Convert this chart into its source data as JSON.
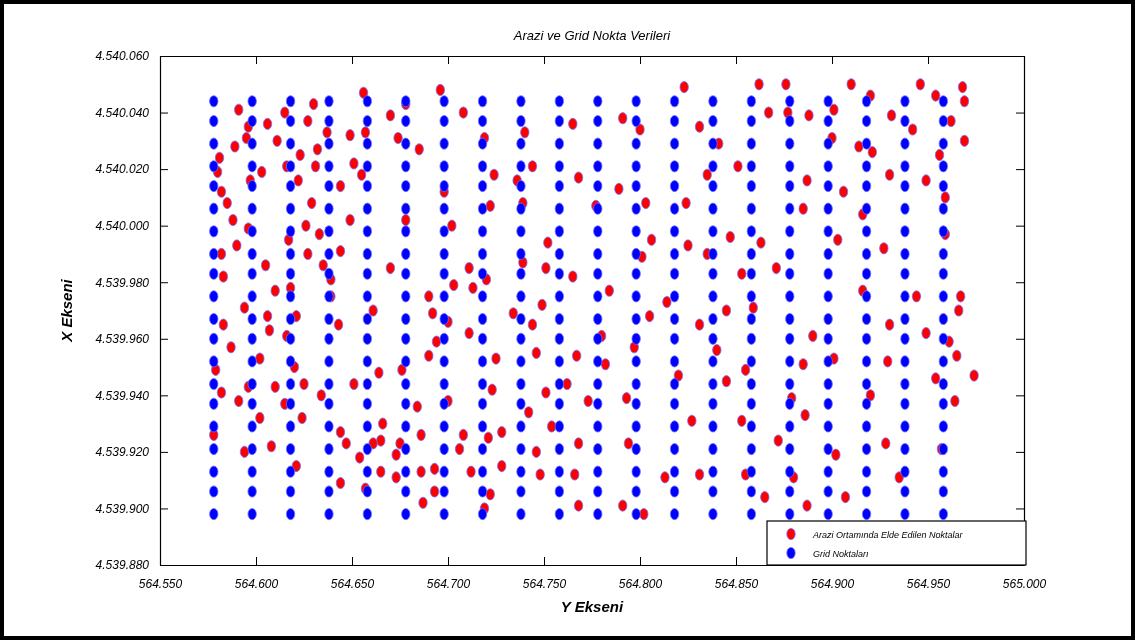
{
  "chart_data": {
    "type": "scatter",
    "title": "Arazi ve Grid Nokta Verileri",
    "xlabel": "Y Ekseni",
    "ylabel": "X Ekseni",
    "xlim": [
      564550,
      565000
    ],
    "xticks": [
      {
        "value": 564550,
        "label": "564.550"
      },
      {
        "value": 564600,
        "label": "564.600"
      },
      {
        "value": 564650,
        "label": "564.650"
      },
      {
        "value": 564700,
        "label": "564.700"
      },
      {
        "value": 564750,
        "label": "564.750"
      },
      {
        "value": 564800,
        "label": "564.800"
      },
      {
        "value": 564850,
        "label": "564.850"
      },
      {
        "value": 564900,
        "label": "564.900"
      },
      {
        "value": 564950,
        "label": "564.950"
      },
      {
        "value": 565000,
        "label": "565.000"
      }
    ],
    "ylim": [
      4539880,
      4540060
    ],
    "yticks": [
      {
        "value": 4539880,
        "label": "4.539.880"
      },
      {
        "value": 4539900,
        "label": "4.539.900"
      },
      {
        "value": 4539920,
        "label": "4.539.920"
      },
      {
        "value": 4539940,
        "label": "4.539.940"
      },
      {
        "value": 4539960,
        "label": "4.539.960"
      },
      {
        "value": 4539980,
        "label": "4.539.980"
      },
      {
        "value": 4540000,
        "label": "4.540.000"
      },
      {
        "value": 4540020,
        "label": "4.540.020"
      },
      {
        "value": 4540040,
        "label": "4.540.040"
      },
      {
        "value": 4540060,
        "label": "4.540.060"
      }
    ],
    "marker": "circle",
    "legend": "bottom right",
    "series": [
      {
        "name": "Arazi Ortamında Elde Edilen Noktalar",
        "color": "#ff0000",
        "x": [
          564591,
          564581,
          564580,
          564582,
          564585,
          564588,
          564590,
          564582,
          564583,
          564589,
          564596,
          564595,
          564597,
          564596,
          564606,
          564611,
          564603,
          564605,
          564610,
          564594,
          564606,
          564615,
          564616,
          564623,
          564622,
          564617,
          564618,
          564621,
          564627,
          564630,
          564632,
          564631,
          564629,
          564626,
          564633,
          564627,
          564635,
          564639,
          564639,
          564637,
          564649,
          564644,
          564644,
          564651,
          564655,
          564649,
          564656,
          564657,
          564661,
          564670,
          564674,
          564678,
          564678,
          564670,
          564685,
          564690,
          564692,
          564696,
          564708,
          564719,
          564740,
          564724,
          564744,
          564736,
          564722,
          564739,
          564698,
          564702,
          564765,
          564768,
          564791,
          564800,
          564789,
          564777,
          564803,
          564823,
          564831,
          564841,
          564835,
          564824,
          564752,
          564806,
          564825,
          564835,
          564801,
          564847,
          564711,
          564720,
          564739,
          564751,
          564765,
          564703,
          564713,
          564784,
          564814,
          564749,
          564734,
          564805,
          564845,
          564862,
          564876,
          564910,
          564946,
          564968,
          564954,
          564969,
          564920,
          564867,
          564877,
          564888,
          564901,
          564931,
          564942,
          564962,
          564969,
          564900,
          564914,
          564921,
          564956,
          564851,
          564887,
          564930,
          564949,
          564906,
          564959,
          564885,
          564916,
          564863,
          564903,
          564959,
          564927,
          564853,
          564871,
          564916,
          564944,
          564967,
          564859,
          564966,
          564583,
          564607,
          564616,
          564643,
          564694,
          564587,
          564602,
          564579,
          564620,
          564690,
          564664,
          564676,
          564582,
          564596,
          564610,
          564625,
          564651,
          564591,
          564615,
          564634,
          564684,
          564602,
          564624,
          564666,
          564644,
          564686,
          564578,
          564647,
          564665,
          564661,
          564675,
          564673,
          564594,
          564608,
          564654,
          564621,
          564665,
          564673,
          564686,
          564693,
          564644,
          564657,
          564687,
          564693,
          564700,
          564744,
          564711,
          564725,
          564746,
          564767,
          564780,
          564782,
          564797,
          564831,
          564840,
          564845,
          564820,
          564723,
          564762,
          564751,
          564773,
          564793,
          564700,
          564742,
          564827,
          564754,
          564708,
          564721,
          564728,
          564706,
          564746,
          564768,
          564794,
          564712,
          564728,
          564748,
          564766,
          564813,
          564831,
          564722,
          564768,
          564791,
          564802,
          564719,
          564930,
          564949,
          564890,
          564961,
          564885,
          564901,
          564929,
          564965,
          564855,
          564954,
          564974,
          564920,
          564879,
          564964,
          564886,
          564853,
          564872,
          564928,
          564902,
          564957,
          564855,
          564880,
          564935,
          564865,
          564907,
          564887
        ],
        "values": [
          4540041,
          4540024,
          4540019,
          4540012,
          4540008,
          4540002,
          4539993,
          4539990,
          4539982,
          4540028,
          4540035,
          4540031,
          4540016,
          4539999,
          4540036,
          4540030,
          4540019,
          4539986,
          4539977,
          4539971,
          4539968,
          4540040,
          4540021,
          4540025,
          4540016,
          4539995,
          4539978,
          4539968,
          4540037,
          4540043,
          4540027,
          4540021,
          4540008,
          4540000,
          4539997,
          4539990,
          4539986,
          4539981,
          4539975,
          4540033,
          4540032,
          4540014,
          4539991,
          4540022,
          4540018,
          4540002,
          4540047,
          4540033,
          4539970,
          4540039,
          4540031,
          4540043,
          4540002,
          4539985,
          4540027,
          4539975,
          4539969,
          4540048,
          4540040,
          4540031,
          4540033,
          4540018,
          4540021,
          4540016,
          4540007,
          4540008,
          4540012,
          4540000,
          4540036,
          4540017,
          4540038,
          4540034,
          4540013,
          4540007,
          4540008,
          4540049,
          4540035,
          4540029,
          4540018,
          4540008,
          4539994,
          4539995,
          4539993,
          4539990,
          4539989,
          4539996,
          4539985,
          4539981,
          4539987,
          4539985,
          4539982,
          4539979,
          4539978,
          4539977,
          4539973,
          4539972,
          4539969,
          4539968,
          4539970,
          4540050,
          4540050,
          4540050,
          4540050,
          4540049,
          4540046,
          4540044,
          4540046,
          4540040,
          4540040,
          4540039,
          4540041,
          4540039,
          4540034,
          4540037,
          4540030,
          4540031,
          4540028,
          4540026,
          4540025,
          4540021,
          4540016,
          4540018,
          4540016,
          4540012,
          4540010,
          4540006,
          4540004,
          4539994,
          4539995,
          4539997,
          4539992,
          4539983,
          4539985,
          4539977,
          4539975,
          4539975,
          4539971,
          4539970,
          4539965,
          4539963,
          4539961,
          4539965,
          4539959,
          4539957,
          4539953,
          4539949,
          4539950,
          4539954,
          4539948,
          4539949,
          4539941,
          4539943,
          4539943,
          4539944,
          4539944,
          4539938,
          4539937,
          4539940,
          4539936,
          4539932,
          4539932,
          4539930,
          4539927,
          4539926,
          4539926,
          4539923,
          4539924,
          4539923,
          4539923,
          4539919,
          4539920,
          4539922,
          4539918,
          4539915,
          4539913,
          4539911,
          4539913,
          4539914,
          4539909,
          4539907,
          4539902,
          4539906,
          4539966,
          4539965,
          4539962,
          4539953,
          4539955,
          4539954,
          4539961,
          4539951,
          4539957,
          4539965,
          4539956,
          4539945,
          4539947,
          4539942,
          4539944,
          4539941,
          4539938,
          4539939,
          4539938,
          4539934,
          4539931,
          4539929,
          4539926,
          4539925,
          4539927,
          4539921,
          4539920,
          4539923,
          4539923,
          4539913,
          4539915,
          4539912,
          4539912,
          4539911,
          4539912,
          4539905,
          4539901,
          4539901,
          4539898,
          4539900,
          4539965,
          4539962,
          4539961,
          4539959,
          4539951,
          4539953,
          4539952,
          4539954,
          4539949,
          4539946,
          4539947,
          4539940,
          4539939,
          4539938,
          4539933,
          4539931,
          4539924,
          4539923,
          4539919,
          4539921,
          4539912,
          4539911,
          4539911,
          4539904,
          4539904,
          4539901
        ]
      },
      {
        "name": "Grid Noktaları",
        "color": "#0000ff",
        "x": [
          564578,
          564578,
          564578,
          564578,
          564578,
          564578,
          564578,
          564578,
          564578,
          564578,
          564578,
          564578,
          564578,
          564578,
          564578,
          564578,
          564578,
          564578,
          564578,
          564578,
          564598,
          564598,
          564598,
          564598,
          564598,
          564598,
          564598,
          564598,
          564598,
          564598,
          564598,
          564598,
          564598,
          564598,
          564598,
          564598,
          564598,
          564598,
          564598,
          564598,
          564618,
          564618,
          564618,
          564618,
          564618,
          564618,
          564618,
          564618,
          564618,
          564618,
          564618,
          564618,
          564618,
          564618,
          564618,
          564618,
          564618,
          564618,
          564618,
          564618,
          564638,
          564638,
          564638,
          564638,
          564638,
          564638,
          564638,
          564638,
          564638,
          564638,
          564638,
          564638,
          564638,
          564638,
          564638,
          564638,
          564638,
          564638,
          564638,
          564638,
          564658,
          564658,
          564658,
          564658,
          564658,
          564658,
          564658,
          564658,
          564658,
          564658,
          564658,
          564658,
          564658,
          564658,
          564658,
          564658,
          564658,
          564658,
          564658,
          564658,
          564678,
          564678,
          564678,
          564678,
          564678,
          564678,
          564678,
          564678,
          564678,
          564678,
          564678,
          564678,
          564678,
          564678,
          564678,
          564678,
          564678,
          564678,
          564678,
          564678,
          564698,
          564698,
          564698,
          564698,
          564698,
          564698,
          564698,
          564698,
          564698,
          564698,
          564698,
          564698,
          564698,
          564698,
          564698,
          564698,
          564698,
          564698,
          564698,
          564698,
          564718,
          564718,
          564718,
          564718,
          564718,
          564718,
          564718,
          564718,
          564718,
          564718,
          564718,
          564718,
          564718,
          564718,
          564718,
          564718,
          564718,
          564718,
          564718,
          564718,
          564738,
          564738,
          564738,
          564738,
          564738,
          564738,
          564738,
          564738,
          564738,
          564738,
          564738,
          564738,
          564738,
          564738,
          564738,
          564738,
          564738,
          564738,
          564738,
          564738,
          564758,
          564758,
          564758,
          564758,
          564758,
          564758,
          564758,
          564758,
          564758,
          564758,
          564758,
          564758,
          564758,
          564758,
          564758,
          564758,
          564758,
          564758,
          564758,
          564758,
          564778,
          564778,
          564778,
          564778,
          564778,
          564778,
          564778,
          564778,
          564778,
          564778,
          564778,
          564778,
          564778,
          564778,
          564778,
          564778,
          564778,
          564778,
          564778,
          564778,
          564798,
          564798,
          564798,
          564798,
          564798,
          564798,
          564798,
          564798,
          564798,
          564798,
          564798,
          564798,
          564798,
          564798,
          564798,
          564798,
          564798,
          564798,
          564798,
          564798,
          564818,
          564818,
          564818,
          564818,
          564818,
          564818,
          564818,
          564818,
          564818,
          564818,
          564818,
          564818,
          564818,
          564818,
          564818,
          564818,
          564818,
          564818,
          564818,
          564818,
          564838,
          564838,
          564838,
          564838,
          564838,
          564838,
          564838,
          564838,
          564838,
          564838,
          564838,
          564838,
          564838,
          564838,
          564838,
          564838,
          564838,
          564838,
          564838,
          564838,
          564858,
          564858,
          564858,
          564858,
          564858,
          564858,
          564858,
          564858,
          564858,
          564858,
          564858,
          564858,
          564858,
          564858,
          564858,
          564858,
          564858,
          564858,
          564858,
          564858,
          564878,
          564878,
          564878,
          564878,
          564878,
          564878,
          564878,
          564878,
          564878,
          564878,
          564878,
          564878,
          564878,
          564878,
          564878,
          564878,
          564878,
          564878,
          564878,
          564878,
          564898,
          564898,
          564898,
          564898,
          564898,
          564898,
          564898,
          564898,
          564898,
          564898,
          564898,
          564898,
          564898,
          564898,
          564898,
          564898,
          564898,
          564898,
          564898,
          564898,
          564918,
          564918,
          564918,
          564918,
          564918,
          564918,
          564918,
          564918,
          564918,
          564918,
          564918,
          564918,
          564918,
          564918,
          564918,
          564918,
          564918,
          564918,
          564918,
          564918,
          564938,
          564938,
          564938,
          564938,
          564938,
          564938,
          564938,
          564938,
          564938,
          564938,
          564938,
          564938,
          564938,
          564938,
          564938,
          564938,
          564938,
          564938,
          564938,
          564938,
          564958,
          564958,
          564958,
          564958,
          564958,
          564958,
          564958,
          564958,
          564958,
          564958,
          564958,
          564958,
          564958,
          564958,
          564958,
          564958,
          564958,
          564958,
          564958,
          564958
        ],
        "values": [
          4539898,
          4539906,
          4539913,
          4539921,
          4539929,
          4539937,
          4539944,
          4539952,
          4539960,
          4539967,
          4539975,
          4539983,
          4539990,
          4539998,
          4540006,
          4540014,
          4540021,
          4540029,
          4540037,
          4540044,
          4539898,
          4539906,
          4539913,
          4539921,
          4539929,
          4539937,
          4539944,
          4539952,
          4539960,
          4539967,
          4539975,
          4539983,
          4539990,
          4539998,
          4540006,
          4540014,
          4540021,
          4540029,
          4540037,
          4540044,
          4539898,
          4539906,
          4539913,
          4539921,
          4539929,
          4539937,
          4539944,
          4539952,
          4539960,
          4539967,
          4539975,
          4539983,
          4539990,
          4539998,
          4540006,
          4540014,
          4540021,
          4540029,
          4540037,
          4540044,
          4539898,
          4539906,
          4539913,
          4539921,
          4539929,
          4539937,
          4539944,
          4539952,
          4539960,
          4539967,
          4539975,
          4539983,
          4539990,
          4539998,
          4540006,
          4540014,
          4540021,
          4540029,
          4540037,
          4540044,
          4539898,
          4539906,
          4539913,
          4539921,
          4539929,
          4539937,
          4539944,
          4539952,
          4539960,
          4539967,
          4539975,
          4539983,
          4539990,
          4539998,
          4540006,
          4540014,
          4540021,
          4540029,
          4540037,
          4540044,
          4539898,
          4539906,
          4539913,
          4539921,
          4539929,
          4539937,
          4539944,
          4539952,
          4539960,
          4539967,
          4539975,
          4539983,
          4539990,
          4539998,
          4540006,
          4540014,
          4540021,
          4540029,
          4540037,
          4540044,
          4539898,
          4539906,
          4539913,
          4539921,
          4539929,
          4539937,
          4539944,
          4539952,
          4539960,
          4539967,
          4539975,
          4539983,
          4539990,
          4539998,
          4540006,
          4540014,
          4540021,
          4540029,
          4540037,
          4540044,
          4539898,
          4539906,
          4539913,
          4539921,
          4539929,
          4539937,
          4539944,
          4539952,
          4539960,
          4539967,
          4539975,
          4539983,
          4539990,
          4539998,
          4540006,
          4540014,
          4540021,
          4540029,
          4540037,
          4540044,
          4539898,
          4539906,
          4539913,
          4539921,
          4539929,
          4539937,
          4539944,
          4539952,
          4539960,
          4539967,
          4539975,
          4539983,
          4539990,
          4539998,
          4540006,
          4540014,
          4540021,
          4540029,
          4540037,
          4540044,
          4539898,
          4539906,
          4539913,
          4539921,
          4539929,
          4539937,
          4539944,
          4539952,
          4539960,
          4539967,
          4539975,
          4539983,
          4539990,
          4539998,
          4540006,
          4540014,
          4540021,
          4540029,
          4540037,
          4540044,
          4539898,
          4539906,
          4539913,
          4539921,
          4539929,
          4539937,
          4539944,
          4539952,
          4539960,
          4539967,
          4539975,
          4539983,
          4539990,
          4539998,
          4540006,
          4540014,
          4540021,
          4540029,
          4540037,
          4540044,
          4539898,
          4539906,
          4539913,
          4539921,
          4539929,
          4539937,
          4539944,
          4539952,
          4539960,
          4539967,
          4539975,
          4539983,
          4539990,
          4539998,
          4540006,
          4540014,
          4540021,
          4540029,
          4540037,
          4540044,
          4539898,
          4539906,
          4539913,
          4539921,
          4539929,
          4539937,
          4539944,
          4539952,
          4539960,
          4539967,
          4539975,
          4539983,
          4539990,
          4539998,
          4540006,
          4540014,
          4540021,
          4540029,
          4540037,
          4540044,
          4539898,
          4539906,
          4539913,
          4539921,
          4539929,
          4539937,
          4539944,
          4539952,
          4539960,
          4539967,
          4539975,
          4539983,
          4539990,
          4539998,
          4540006,
          4540014,
          4540021,
          4540029,
          4540037,
          4540044,
          4539898,
          4539906,
          4539913,
          4539921,
          4539929,
          4539937,
          4539944,
          4539952,
          4539960,
          4539967,
          4539975,
          4539983,
          4539990,
          4539998,
          4540006,
          4540014,
          4540021,
          4540029,
          4540037,
          4540044,
          4539898,
          4539906,
          4539913,
          4539921,
          4539929,
          4539937,
          4539944,
          4539952,
          4539960,
          4539967,
          4539975,
          4539983,
          4539990,
          4539998,
          4540006,
          4540014,
          4540021,
          4540029,
          4540037,
          4540044,
          4539898,
          4539906,
          4539913,
          4539921,
          4539929,
          4539937,
          4539944,
          4539952,
          4539960,
          4539967,
          4539975,
          4539983,
          4539990,
          4539998,
          4540006,
          4540014,
          4540021,
          4540029,
          4540037,
          4540044,
          4539898,
          4539906,
          4539913,
          4539921,
          4539929,
          4539937,
          4539944,
          4539952,
          4539960,
          4539967,
          4539975,
          4539983,
          4539990,
          4539998,
          4540006,
          4540014,
          4540021,
          4540029,
          4540037,
          4540044,
          4539898,
          4539906,
          4539913,
          4539921,
          4539929,
          4539937,
          4539944,
          4539952,
          4539960,
          4539967,
          4539975,
          4539983,
          4539990,
          4539998,
          4540006,
          4540014,
          4540021,
          4540029,
          4540037,
          4540044,
          4539898,
          4539906,
          4539913,
          4539921,
          4539929,
          4539937,
          4539944,
          4539952,
          4539960,
          4539967,
          4539975,
          4539983,
          4539990,
          4539998,
          4540006,
          4540014,
          4540021,
          4540029,
          4540037,
          4540044
        ]
      }
    ]
  }
}
